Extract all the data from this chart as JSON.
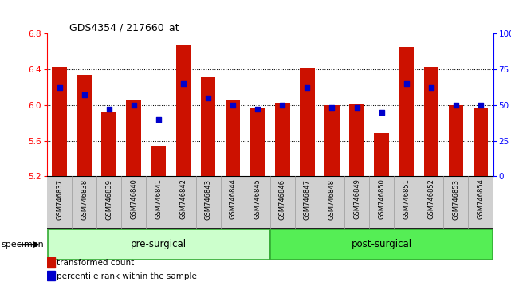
{
  "title": "GDS4354 / 217660_at",
  "samples": [
    "GSM746837",
    "GSM746838",
    "GSM746839",
    "GSM746840",
    "GSM746841",
    "GSM746842",
    "GSM746843",
    "GSM746844",
    "GSM746845",
    "GSM746846",
    "GSM746847",
    "GSM746848",
    "GSM746849",
    "GSM746850",
    "GSM746851",
    "GSM746852",
    "GSM746853",
    "GSM746854"
  ],
  "bar_values": [
    6.43,
    6.34,
    5.93,
    6.05,
    5.54,
    6.67,
    6.31,
    6.05,
    5.97,
    6.03,
    6.42,
    6.0,
    6.02,
    5.69,
    6.65,
    6.43,
    6.0,
    5.97
  ],
  "percentile_values": [
    62,
    57,
    47,
    50,
    40,
    65,
    55,
    50,
    47,
    50,
    62,
    48,
    48,
    45,
    65,
    62,
    50,
    50
  ],
  "bar_color": "#cc1100",
  "dot_color": "#0000cc",
  "ylim_left": [
    5.2,
    6.8
  ],
  "ylim_right": [
    0,
    100
  ],
  "yticks_left": [
    5.2,
    5.6,
    6.0,
    6.4,
    6.8
  ],
  "yticks_right": [
    0,
    25,
    50,
    75,
    100
  ],
  "pre_surgical_count": 9,
  "group_labels": [
    "pre-surgical",
    "post-surgical"
  ],
  "pre_color": "#ccffcc",
  "post_color": "#55ee55",
  "border_color": "#33aa33",
  "legend_items": [
    "transformed count",
    "percentile rank within the sample"
  ],
  "bar_color_name": "red",
  "dot_color_name": "blue",
  "background_color": "#ffffff",
  "bar_width": 0.6,
  "bottom_label": "specimen",
  "xlabel_bg": "#d0d0d0",
  "xlabel_cell_border": "#999999"
}
